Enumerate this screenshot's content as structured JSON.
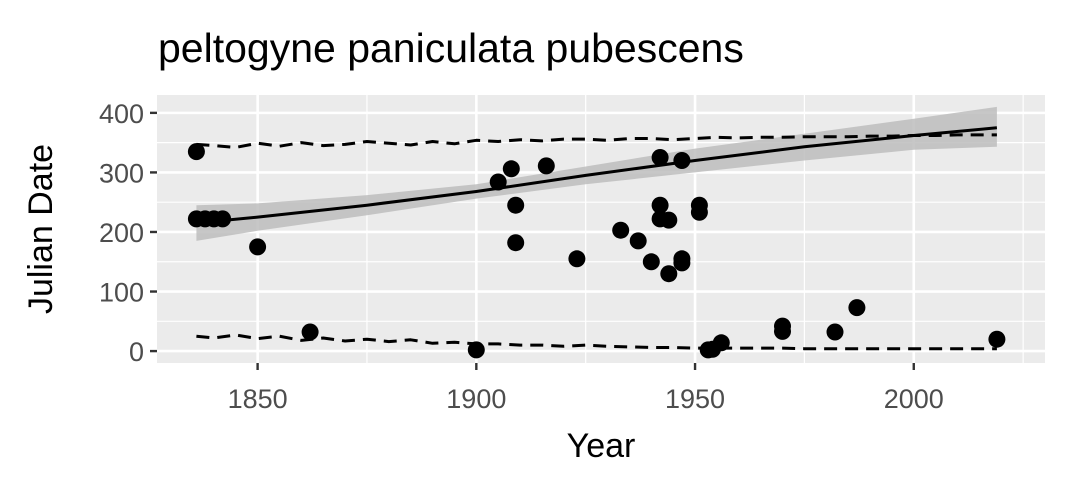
{
  "chart_data": {
    "type": "scatter",
    "title": "peltogyne paniculata pubescens",
    "xlabel": "Year",
    "ylabel": "Julian Date",
    "xlim": [
      1827,
      2030
    ],
    "ylim": [
      -20,
      430
    ],
    "x_ticks": [
      1850,
      1900,
      1950,
      2000
    ],
    "y_ticks": [
      0,
      100,
      200,
      300,
      400
    ],
    "grid": true,
    "legend": "none",
    "colors": {
      "panel": "#EBEBEB",
      "grid": "#FFFFFF",
      "points": "#000000",
      "trend_line": "#000000",
      "ribbon": "#BDBDBD"
    },
    "points": [
      {
        "x": 1836,
        "y": 335
      },
      {
        "x": 1836,
        "y": 222
      },
      {
        "x": 1838,
        "y": 222
      },
      {
        "x": 1840,
        "y": 222
      },
      {
        "x": 1842,
        "y": 222
      },
      {
        "x": 1850,
        "y": 175
      },
      {
        "x": 1862,
        "y": 32
      },
      {
        "x": 1900,
        "y": 2
      },
      {
        "x": 1905,
        "y": 284
      },
      {
        "x": 1908,
        "y": 306
      },
      {
        "x": 1909,
        "y": 245
      },
      {
        "x": 1909,
        "y": 182
      },
      {
        "x": 1916,
        "y": 311
      },
      {
        "x": 1923,
        "y": 155
      },
      {
        "x": 1933,
        "y": 203
      },
      {
        "x": 1937,
        "y": 185
      },
      {
        "x": 1940,
        "y": 150
      },
      {
        "x": 1942,
        "y": 325
      },
      {
        "x": 1942,
        "y": 245
      },
      {
        "x": 1942,
        "y": 222
      },
      {
        "x": 1944,
        "y": 220
      },
      {
        "x": 1944,
        "y": 130
      },
      {
        "x": 1947,
        "y": 320
      },
      {
        "x": 1947,
        "y": 155
      },
      {
        "x": 1947,
        "y": 148
      },
      {
        "x": 1951,
        "y": 245
      },
      {
        "x": 1951,
        "y": 233
      },
      {
        "x": 1953,
        "y": 2
      },
      {
        "x": 1954,
        "y": 3
      },
      {
        "x": 1956,
        "y": 14
      },
      {
        "x": 1970,
        "y": 42
      },
      {
        "x": 1970,
        "y": 33
      },
      {
        "x": 1982,
        "y": 32
      },
      {
        "x": 1987,
        "y": 73
      },
      {
        "x": 2019,
        "y": 20
      }
    ],
    "series": [
      {
        "type": "trend",
        "style": "solid",
        "x": [
          1836,
          1850,
          1875,
          1900,
          1925,
          1950,
          1975,
          2000,
          2019
        ],
        "y": [
          215,
          225,
          245,
          268,
          295,
          320,
          343,
          362,
          375
        ]
      },
      {
        "type": "ribbon-upper",
        "x": [
          1836,
          1850,
          1875,
          1900,
          1925,
          1950,
          1975,
          2000,
          2019
        ],
        "y": [
          245,
          248,
          262,
          280,
          310,
          340,
          365,
          390,
          410
        ]
      },
      {
        "type": "ribbon-lower",
        "x": [
          1836,
          1850,
          1875,
          1900,
          1925,
          1950,
          1975,
          2000,
          2019
        ],
        "y": [
          185,
          202,
          228,
          256,
          280,
          300,
          320,
          338,
          343
        ]
      },
      {
        "type": "upper-bound",
        "style": "dashed",
        "x": [
          1836,
          1840,
          1845,
          1850,
          1855,
          1860,
          1865,
          1870,
          1875,
          1880,
          1885,
          1890,
          1895,
          1900,
          1905,
          1910,
          1915,
          1920,
          1925,
          1930,
          1935,
          1940,
          1945,
          1950,
          1955,
          1960,
          1965,
          1970,
          1975,
          1980,
          1985,
          1990,
          1995,
          2000,
          2005,
          2010,
          2015,
          2019
        ],
        "y": [
          347,
          345,
          342,
          349,
          344,
          350,
          345,
          347,
          352,
          349,
          346,
          352,
          348,
          354,
          352,
          355,
          353,
          356,
          356,
          354,
          357,
          357,
          355,
          357,
          359,
          358,
          359,
          359,
          360,
          360,
          360,
          361,
          361,
          362,
          362,
          363,
          363,
          363
        ]
      },
      {
        "type": "lower-bound",
        "style": "dashed",
        "x": [
          1836,
          1840,
          1845,
          1850,
          1855,
          1860,
          1865,
          1870,
          1875,
          1880,
          1885,
          1890,
          1895,
          1900,
          1905,
          1910,
          1915,
          1920,
          1925,
          1930,
          1935,
          1940,
          1945,
          1950,
          1955,
          1960,
          1965,
          1970,
          1975,
          1980,
          1985,
          1990,
          1995,
          2000,
          2005,
          2010,
          2015,
          2019
        ],
        "y": [
          25,
          22,
          27,
          21,
          25,
          18,
          22,
          17,
          20,
          16,
          19,
          13,
          15,
          12,
          12,
          10,
          10,
          8,
          10,
          8,
          7,
          6,
          6,
          5,
          5,
          5,
          5,
          5,
          4,
          4,
          4,
          4,
          4,
          4,
          4,
          4,
          4,
          4
        ]
      }
    ]
  }
}
